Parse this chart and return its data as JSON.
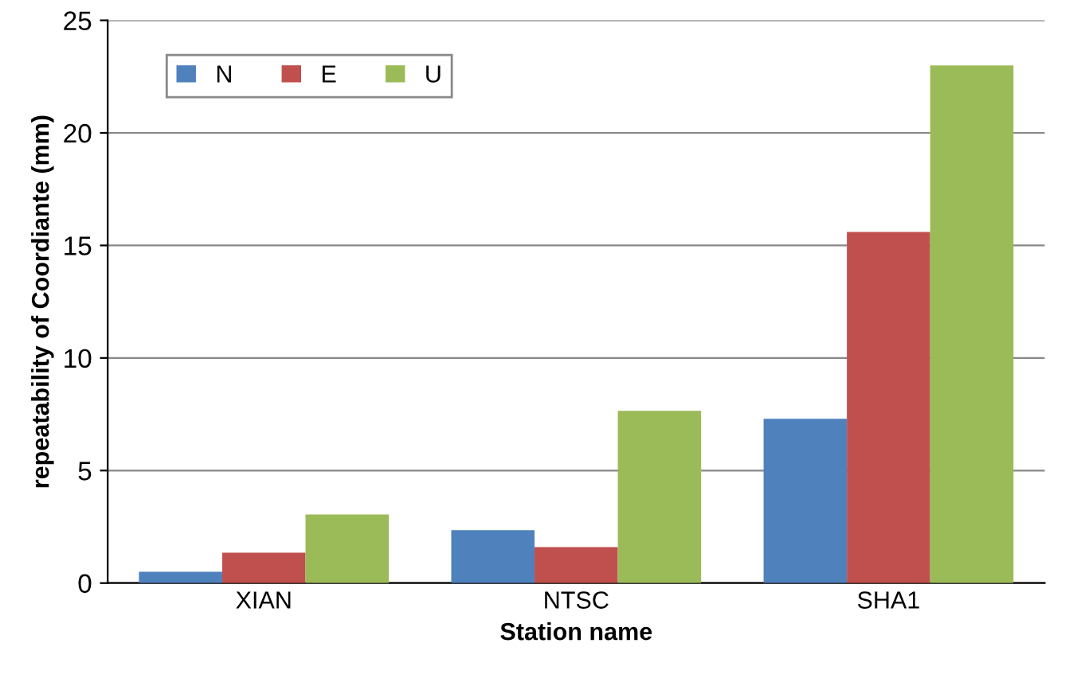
{
  "chart_data": {
    "type": "bar",
    "xlabel": "Station name",
    "ylabel": "repeatability of Coordiante (mm)",
    "categories": [
      "XIAN",
      "NTSC",
      "SHA1"
    ],
    "series": [
      {
        "name": "N",
        "color": "#4f81bd",
        "values": [
          0.5,
          2.35,
          7.3
        ]
      },
      {
        "name": "E",
        "color": "#c0504d",
        "values": [
          1.35,
          1.6,
          15.6
        ]
      },
      {
        "name": "U",
        "color": "#9bbb59",
        "values": [
          3.05,
          7.65,
          23.0
        ]
      }
    ],
    "ylim": [
      0,
      25
    ],
    "yticks": [
      0,
      5,
      10,
      15,
      20,
      25
    ],
    "grid": "y",
    "legend": "top left"
  }
}
